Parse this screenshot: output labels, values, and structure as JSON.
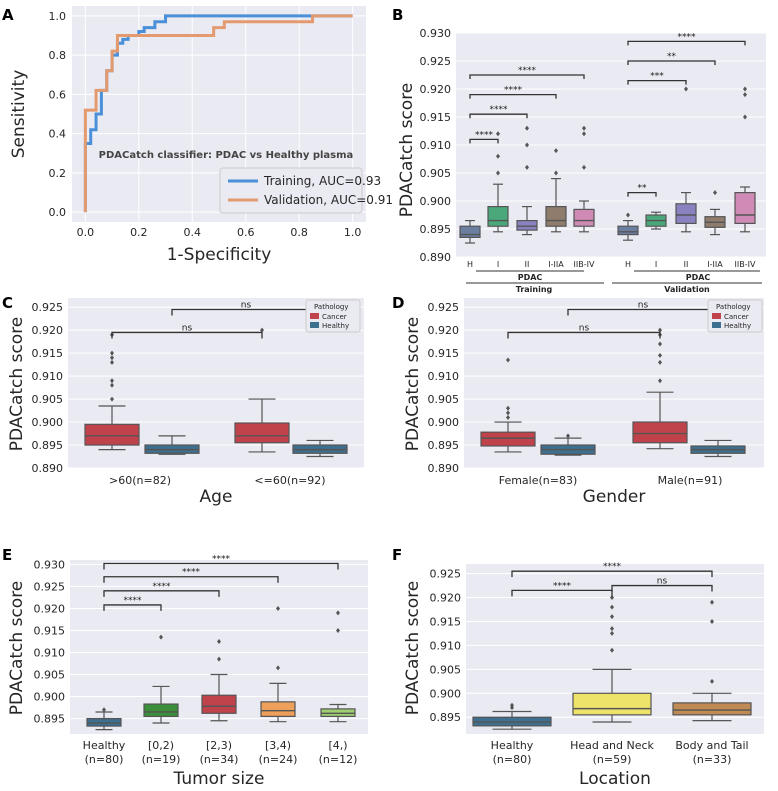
{
  "chart_data": [
    {
      "panel": "A",
      "type": "line",
      "title": "PDACatch classifier: PDAC vs Healthy plasma",
      "xlabel": "1-Specificity",
      "ylabel": "Sensitivity",
      "xlim": [
        -0.05,
        1.05
      ],
      "ylim": [
        -0.05,
        1.05
      ],
      "xticks": [
        "0.0",
        "0.2",
        "0.4",
        "0.6",
        "0.8",
        "1.0"
      ],
      "yticks": [
        "0.0",
        "0.2",
        "0.4",
        "0.6",
        "0.8",
        "1.0"
      ],
      "series": [
        {
          "name": "Training, AUC=0.93",
          "color": "#4a90d9",
          "x": [
            0,
            0,
            0.02,
            0.02,
            0.04,
            0.04,
            0.06,
            0.06,
            0.08,
            0.08,
            0.1,
            0.1,
            0.12,
            0.12,
            0.14,
            0.14,
            0.16,
            0.16,
            0.2,
            0.2,
            0.22,
            0.22,
            0.26,
            0.26,
            0.3,
            0.3,
            1.0
          ],
          "y": [
            0,
            0.35,
            0.35,
            0.42,
            0.42,
            0.5,
            0.5,
            0.62,
            0.62,
            0.72,
            0.72,
            0.8,
            0.8,
            0.86,
            0.86,
            0.88,
            0.88,
            0.9,
            0.9,
            0.92,
            0.92,
            0.94,
            0.94,
            0.97,
            0.97,
            1.0,
            1.0
          ]
        },
        {
          "name": "Validation, AUC=0.91",
          "color": "#e39a6f",
          "x": [
            0,
            0,
            0.04,
            0.04,
            0.08,
            0.08,
            0.1,
            0.1,
            0.12,
            0.12,
            0.48,
            0.48,
            0.52,
            0.52,
            0.85,
            0.85,
            1.0
          ],
          "y": [
            0,
            0.52,
            0.52,
            0.62,
            0.62,
            0.72,
            0.72,
            0.82,
            0.82,
            0.9,
            0.9,
            0.94,
            0.94,
            0.97,
            0.97,
            1.0,
            1.0
          ]
        }
      ]
    },
    {
      "panel": "B",
      "type": "box",
      "ylabel": "PDACatch score",
      "ylim": [
        0.89,
        0.93
      ],
      "yticks": [
        "0.890",
        "0.895",
        "0.900",
        "0.905",
        "0.910",
        "0.915",
        "0.920",
        "0.925",
        "0.930"
      ],
      "categories": [
        "H",
        "I",
        "II",
        "I-IIA",
        "IIB-IV",
        "H",
        "I",
        "II",
        "I-IIA",
        "IIB-IV"
      ],
      "groups": [
        {
          "label": "PDAC",
          "outer": "Training"
        },
        {
          "label": "PDAC",
          "outer": "Validation"
        }
      ],
      "significance": [
        "****",
        "****",
        "****",
        "****",
        "**",
        "***",
        "**",
        "****"
      ]
    },
    {
      "panel": "C",
      "type": "box",
      "xlabel": "Age",
      "ylabel": "PDACatch score",
      "ylim": [
        0.89,
        0.927
      ],
      "yticks": [
        "0.890",
        "0.895",
        "0.900",
        "0.905",
        "0.910",
        "0.915",
        "0.920",
        "0.925"
      ],
      "categories": [
        ">60(n=82)",
        "<=60(n=92)"
      ],
      "legend": {
        "title": "Pathology",
        "items": [
          "Cancer",
          "Healthy"
        ]
      },
      "significance": [
        "ns",
        "ns"
      ]
    },
    {
      "panel": "D",
      "type": "box",
      "xlabel": "Gender",
      "ylabel": "PDACatch score",
      "ylim": [
        0.89,
        0.927
      ],
      "yticks": [
        "0.890",
        "0.895",
        "0.900",
        "0.905",
        "0.910",
        "0.915",
        "0.920",
        "0.925"
      ],
      "categories": [
        "Female(n=83)",
        "Male(n=91)"
      ],
      "legend": {
        "title": "Pathology",
        "items": [
          "Cancer",
          "Healthy"
        ]
      },
      "significance": [
        "ns",
        "ns"
      ]
    },
    {
      "panel": "E",
      "type": "box",
      "xlabel": "Tumor size",
      "ylabel": "PDACatch score",
      "ylim": [
        0.8915,
        0.931
      ],
      "yticks": [
        "0.895",
        "0.900",
        "0.905",
        "0.910",
        "0.915",
        "0.920",
        "0.925",
        "0.930"
      ],
      "categories": [
        [
          "Healthy",
          "(n=80)"
        ],
        [
          "[0,2)",
          "(n=19)"
        ],
        [
          "[2,3)",
          "(n=34)"
        ],
        [
          "[3,4)",
          "(n=24)"
        ],
        [
          "[4,)",
          "(n=12)"
        ]
      ],
      "significance": [
        "****",
        "****",
        "****",
        "****"
      ]
    },
    {
      "panel": "F",
      "type": "box",
      "xlabel": "Location",
      "ylabel": "PDACatch score",
      "ylim": [
        0.8915,
        0.927
      ],
      "yticks": [
        "0.895",
        "0.900",
        "0.905",
        "0.910",
        "0.915",
        "0.920",
        "0.925"
      ],
      "categories": [
        [
          "Healthy",
          "(n=80)"
        ],
        [
          "Head and Neck",
          "(n=59)"
        ],
        [
          "Body and Tail",
          "(n=33)"
        ]
      ],
      "significance": [
        "****",
        "****",
        "ns"
      ]
    }
  ],
  "colors": {
    "training": "#4a90d9",
    "validation": "#e39a6f",
    "cancer": "#c0424b",
    "healthy": "#3d6f8f",
    "stage_I": "#4aa87a",
    "stage_II": "#8a82c0",
    "stage_IIA": "#8f7c6c",
    "stage_IIB": "#cf8ab5",
    "size_0_2": "#3b8f3b",
    "size_2_3": "#c0424b",
    "size_3_4": "#ee9f5a",
    "size_4": "#9fcf70",
    "head_neck": "#ede36a",
    "body_tail": "#c08a55"
  }
}
